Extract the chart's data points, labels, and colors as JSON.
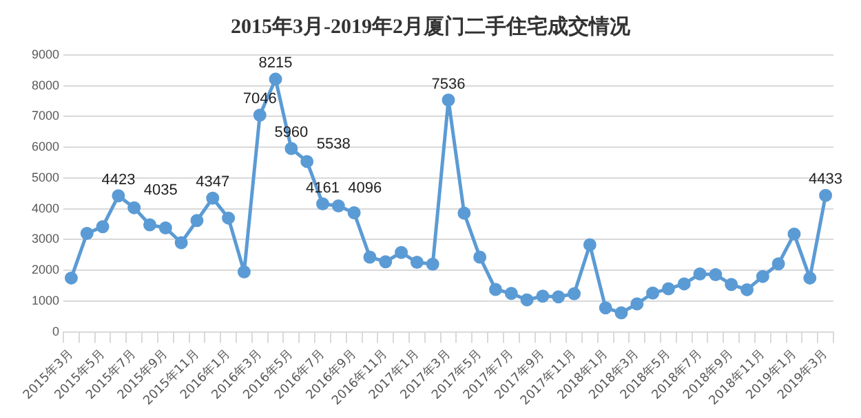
{
  "chart_data": {
    "type": "line",
    "title": "2015年3月-2019年2月厦门二手住宅成交情况",
    "categories": [
      "2015年3月",
      null,
      "2015年5月",
      null,
      "2015年7月",
      null,
      "2015年9月",
      null,
      "2015年11月",
      null,
      "2016年1月",
      null,
      "2016年3月",
      null,
      "2016年5月",
      null,
      "2016年7月",
      null,
      "2016年9月",
      null,
      "2016年11月",
      null,
      "2017年1月",
      null,
      "2017年3月",
      null,
      "2017年5月",
      null,
      "2017年7月",
      null,
      "2017年9月",
      null,
      "2017年11月",
      null,
      "2018年1月",
      null,
      "2018年3月",
      null,
      "2018年5月",
      null,
      "2018年7月",
      null,
      "2018年9月",
      null,
      "2018年11月",
      null,
      "2019年1月",
      null,
      "2019年3月"
    ],
    "series": [
      {
        "color": "#5b9bd5",
        "values": [
          1750,
          3200,
          3420,
          4423,
          4035,
          3480,
          3380,
          2900,
          3620,
          4347,
          3700,
          1950,
          7046,
          8215,
          5960,
          5538,
          4161,
          4096,
          3870,
          2430,
          2280,
          2580,
          2260,
          2200,
          7536,
          3860,
          2430,
          1380,
          1250,
          1040,
          1160,
          1140,
          1240,
          2830,
          780,
          620,
          910,
          1260,
          1400,
          1560,
          1880,
          1860,
          1540,
          1370,
          1800,
          2210,
          3180,
          1750,
          4433
        ],
        "value_labels": [
          null,
          null,
          null,
          "4423",
          "4035",
          null,
          null,
          null,
          null,
          "4347",
          null,
          null,
          "7046",
          "8215",
          "5960",
          "5538",
          "4161",
          "4096",
          null,
          null,
          null,
          null,
          null,
          null,
          "7536",
          null,
          null,
          null,
          null,
          null,
          null,
          null,
          null,
          null,
          null,
          null,
          null,
          null,
          null,
          null,
          null,
          null,
          null,
          null,
          null,
          null,
          null,
          null,
          "4433"
        ]
      }
    ],
    "ylim": [
      0,
      9000
    ],
    "yticks": [
      0,
      1000,
      2000,
      3000,
      4000,
      5000,
      6000,
      7000,
      8000,
      9000
    ],
    "grid": "y",
    "legend": false,
    "marker": "circle",
    "line_style": "solid"
  }
}
